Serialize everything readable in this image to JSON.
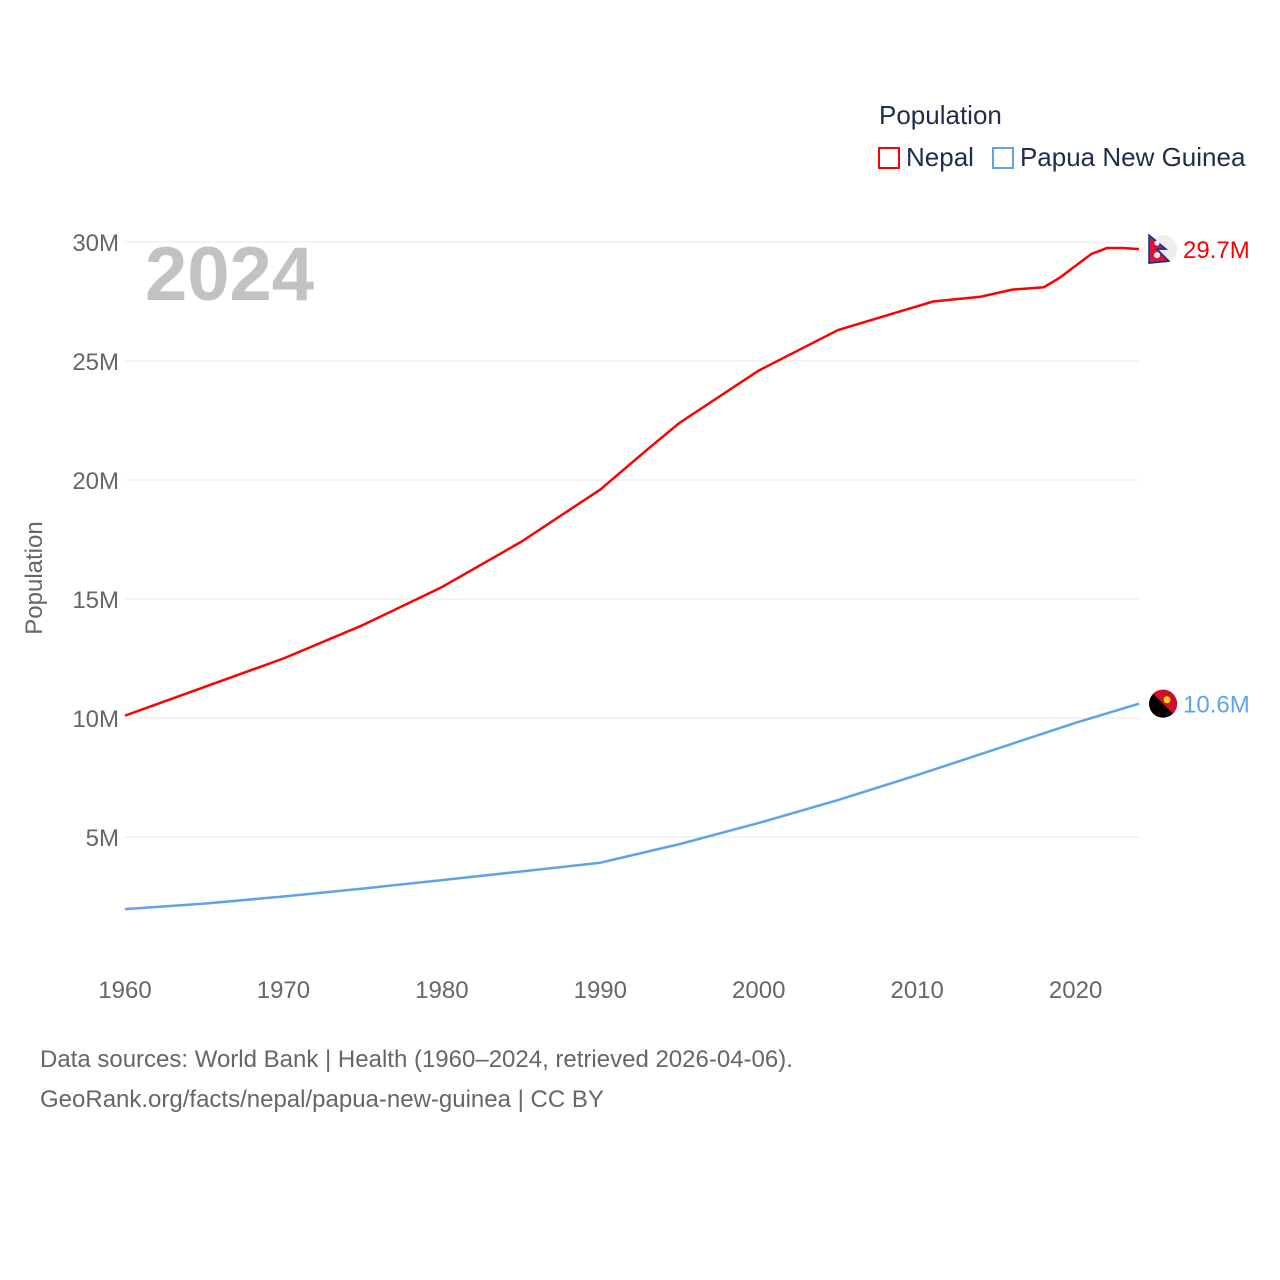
{
  "chart_data": {
    "type": "line",
    "title": "Population",
    "year_label": "2024",
    "ylabel": "Population",
    "xlim": [
      1960,
      2024
    ],
    "ylim": [
      0,
      30000000
    ],
    "xticks": [
      1960,
      1970,
      1980,
      1990,
      2000,
      2010,
      2020
    ],
    "xtick_labels": [
      "1960",
      "1970",
      "1980",
      "1990",
      "2000",
      "2010",
      "2020"
    ],
    "yticks": [
      5000000,
      10000000,
      15000000,
      20000000,
      25000000,
      30000000
    ],
    "ytick_labels": [
      "5M",
      "10M",
      "15M",
      "20M",
      "25M",
      "30M"
    ],
    "grid": true,
    "legend_position": "top-right",
    "series": [
      {
        "name": "Nepal",
        "color": "#ff0000",
        "end_label": "29.7M",
        "flag": "nepal-flag",
        "x": [
          1960,
          1965,
          1970,
          1975,
          1980,
          1985,
          1990,
          1993,
          1995,
          2000,
          2005,
          2010,
          2011,
          2014,
          2016,
          2018,
          2019,
          2020,
          2021,
          2022,
          2023,
          2024
        ],
        "y": [
          10.1,
          11.3,
          12.5,
          13.9,
          15.5,
          17.4,
          19.6,
          21.3,
          22.4,
          24.6,
          26.3,
          27.3,
          27.5,
          27.7,
          28.0,
          28.1,
          28.5,
          29.0,
          29.5,
          29.75,
          29.75,
          29.7
        ]
      },
      {
        "name": "Papua New Guinea",
        "color": "#5ea3e8",
        "end_label": "10.6M",
        "flag": "papua-new-guinea-flag",
        "x": [
          1960,
          1965,
          1970,
          1975,
          1980,
          1985,
          1990,
          1995,
          2000,
          2005,
          2010,
          2015,
          2020,
          2024
        ],
        "y": [
          1.97,
          2.2,
          2.5,
          2.83,
          3.19,
          3.55,
          3.92,
          4.7,
          5.59,
          6.55,
          7.6,
          8.7,
          9.8,
          10.6
        ]
      }
    ],
    "y_unit": "millions"
  },
  "footer": {
    "line1": "Data sources: World Bank | Health (1960–2024, retrieved 2026-04-06).",
    "line2": "GeoRank.org/facts/nepal/papua-new-guinea | CC BY"
  }
}
